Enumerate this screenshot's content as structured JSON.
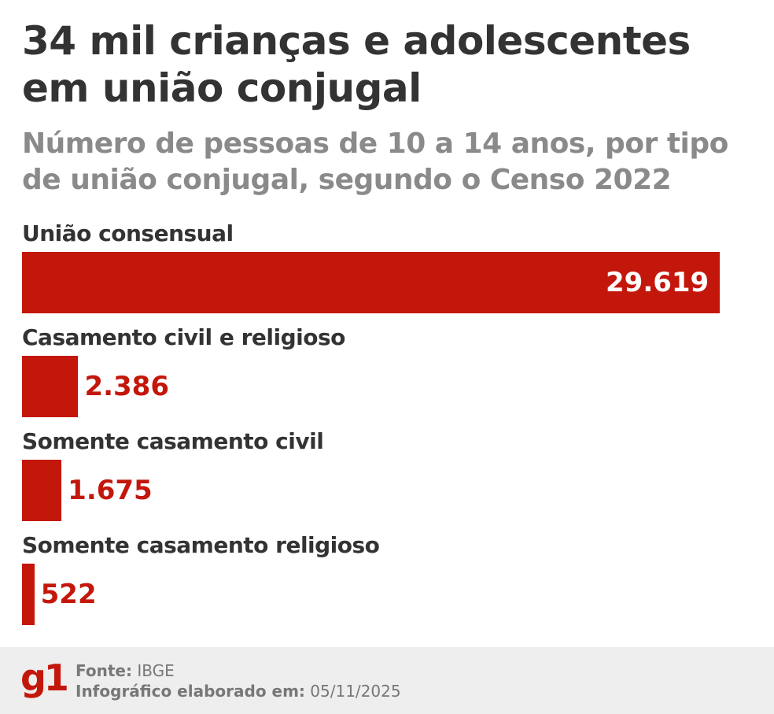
{
  "chart_data": {
    "type": "bar",
    "orientation": "horizontal",
    "title": "34 mil crianças e adolescentes em união conjugal",
    "subtitle": "Número de pessoas de 10 a 14 anos, por tipo de união conjugal, segundo o Censo 2022",
    "categories": [
      "União consensual",
      "Casamento civil e religioso",
      "Somente casamento civil",
      "Somente casamento religioso"
    ],
    "values": [
      29619,
      2386,
      1675,
      522
    ],
    "value_labels": [
      "29.619",
      "2.386",
      "1.675",
      "522"
    ],
    "bar_color": "#c4170c",
    "grid": false
  },
  "footer": {
    "logo": "g1",
    "source_label": "Fonte:",
    "source": "IBGE",
    "date_label": "Infográfico elaborado em:",
    "date": "05/11/2025"
  }
}
